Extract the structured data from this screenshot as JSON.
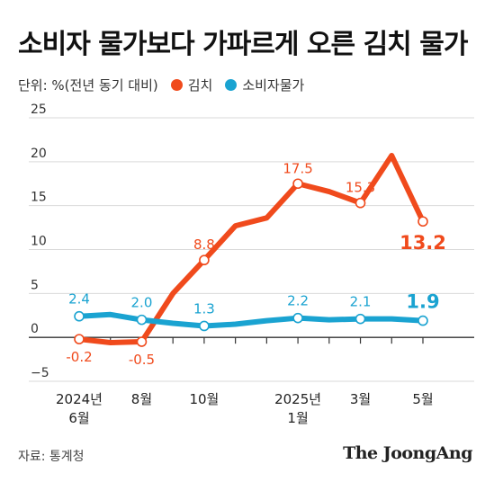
{
  "title": "소비자 물가보다 가파르게 오른 김치 물가",
  "unit_label": "단위: %(전년 동기 대비)",
  "source": "자료: 통계청",
  "brand": "The JoongAng",
  "colors": {
    "kimchi": "#f04a1c",
    "cpi": "#1aa3d1",
    "grid": "#d9d9d9",
    "axis": "#333333"
  },
  "chart_data": {
    "type": "line",
    "ylim": [
      -5,
      25
    ],
    "yticks": [
      -5,
      0,
      5,
      10,
      15,
      20,
      25
    ],
    "ytick_labels": [
      "−5",
      "0",
      "5",
      "10",
      "15",
      "20",
      "25"
    ],
    "x": [
      "2024-06",
      "2024-07",
      "2024-08",
      "2024-09",
      "2024-10",
      "2024-11",
      "2024-12",
      "2025-01",
      "2025-02",
      "2025-03",
      "2025-04",
      "2025-05"
    ],
    "xtick_labels": [
      {
        "index": 0,
        "lines": [
          "2024년",
          "6월"
        ]
      },
      {
        "index": 2,
        "lines": [
          "8월"
        ]
      },
      {
        "index": 4,
        "lines": [
          "10월"
        ]
      },
      {
        "index": 7,
        "lines": [
          "2025년",
          "1월"
        ]
      },
      {
        "index": 9,
        "lines": [
          "3월"
        ]
      },
      {
        "index": 11,
        "lines": [
          "5월"
        ]
      }
    ],
    "series": [
      {
        "key": "kimchi",
        "name": "김치",
        "values": [
          -0.2,
          -0.6,
          -0.5,
          5.0,
          8.8,
          12.7,
          13.6,
          17.5,
          16.6,
          15.3,
          20.7,
          13.2
        ],
        "labels": [
          {
            "index": 0,
            "text": "-0.2"
          },
          {
            "index": 2,
            "text": "-0.5"
          },
          {
            "index": 4,
            "text": "8.8"
          },
          {
            "index": 7,
            "text": "17.5"
          },
          {
            "index": 9,
            "text": "15.3"
          },
          {
            "index": 11,
            "text": "13.2"
          }
        ]
      },
      {
        "key": "cpi",
        "name": "소비자물가",
        "values": [
          2.4,
          2.6,
          2.0,
          1.6,
          1.3,
          1.5,
          1.9,
          2.2,
          2.0,
          2.1,
          2.1,
          1.9
        ],
        "labels": [
          {
            "index": 0,
            "text": "2.4"
          },
          {
            "index": 2,
            "text": "2.0"
          },
          {
            "index": 4,
            "text": "1.3"
          },
          {
            "index": 7,
            "text": "2.2"
          },
          {
            "index": 9,
            "text": "2.1"
          },
          {
            "index": 11,
            "text": "1.9"
          }
        ]
      }
    ]
  }
}
